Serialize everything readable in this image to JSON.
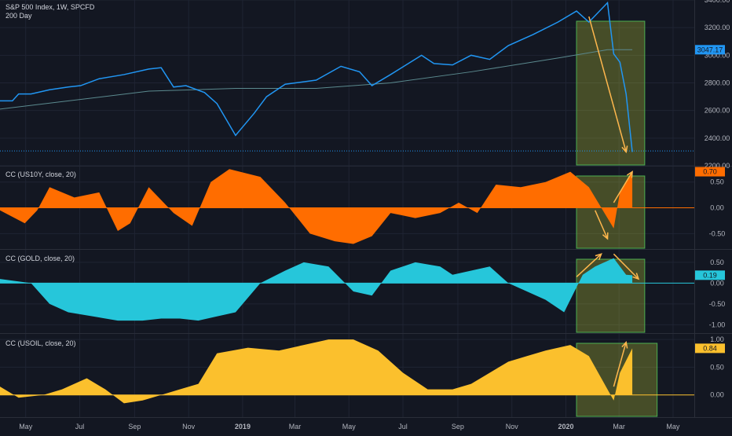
{
  "colors": {
    "background": "#131722",
    "grid": "#1f2433",
    "separator": "#2a2e39",
    "axis_text": "#b2b5be",
    "price": "#2196f3",
    "ma": "#5b8a8f",
    "us10y": "#ff6d00",
    "gold": "#26c6da",
    "usoil": "#fbc02d",
    "box_stroke": "#4caf50",
    "box_fill": "rgba(205,220,57,0.28)",
    "arrow": "#ffb74d"
  },
  "x_axis": {
    "range": [
      "2018-04-02",
      "2020-05-25"
    ],
    "ticks": [
      {
        "date": "2018-05-01",
        "label": "May",
        "bold": false
      },
      {
        "date": "2018-07-01",
        "label": "Jul",
        "bold": false
      },
      {
        "date": "2018-09-01",
        "label": "Sep",
        "bold": false
      },
      {
        "date": "2018-11-01",
        "label": "Nov",
        "bold": false
      },
      {
        "date": "2019-01-01",
        "label": "2019",
        "bold": true
      },
      {
        "date": "2019-03-01",
        "label": "Mar",
        "bold": false
      },
      {
        "date": "2019-05-01",
        "label": "May",
        "bold": false
      },
      {
        "date": "2019-07-01",
        "label": "Jul",
        "bold": false
      },
      {
        "date": "2019-09-01",
        "label": "Sep",
        "bold": false
      },
      {
        "date": "2019-11-01",
        "label": "Nov",
        "bold": false
      },
      {
        "date": "2020-01-01",
        "label": "2020",
        "bold": true
      },
      {
        "date": "2020-03-01",
        "label": "Mar",
        "bold": false
      },
      {
        "date": "2020-05-01",
        "label": "May",
        "bold": false
      }
    ]
  },
  "chart_data": [
    {
      "type": "line",
      "title": "S&P 500 Index, 1W, SPCFD",
      "ylim": [
        2200,
        3400
      ],
      "yticks": [
        2200,
        2400,
        2600,
        2800,
        3000,
        3200,
        3400
      ],
      "ytick_labels": [
        "2200.00",
        "2400.00",
        "2600.00",
        "2800.00",
        "3000.00",
        "3200.00",
        "3400.00"
      ],
      "last_value_label": "3047.17",
      "dotted_level": 2307,
      "series": [
        {
          "name": "",
          "x": [
            "2018-04-02",
            "2018-04-16",
            "2018-04-23",
            "2018-05-07",
            "2018-05-28",
            "2018-06-18",
            "2018-07-02",
            "2018-07-23",
            "2018-08-20",
            "2018-09-17",
            "2018-10-01",
            "2018-10-15",
            "2018-10-29",
            "2018-11-19",
            "2018-12-03",
            "2018-12-24",
            "2019-01-14",
            "2019-01-28",
            "2019-02-18",
            "2019-03-25",
            "2019-04-22",
            "2019-05-13",
            "2019-05-27",
            "2019-06-17",
            "2019-07-22",
            "2019-08-05",
            "2019-08-26",
            "2019-09-16",
            "2019-10-07",
            "2019-10-28",
            "2019-11-25",
            "2019-12-23",
            "2020-01-13",
            "2020-01-27",
            "2020-02-17",
            "2020-02-24",
            "2020-03-02",
            "2020-03-09",
            "2020-03-16"
          ],
          "values": [
            2670,
            2670,
            2720,
            2720,
            2750,
            2770,
            2780,
            2830,
            2860,
            2900,
            2910,
            2770,
            2780,
            2730,
            2650,
            2420,
            2580,
            2700,
            2790,
            2820,
            2920,
            2880,
            2780,
            2860,
            3000,
            2940,
            2930,
            3000,
            2970,
            3070,
            3150,
            3240,
            3320,
            3240,
            3380,
            3010,
            2950,
            2720,
            2300
          ]
        },
        {
          "name": "200 Day",
          "x": [
            "2018-04-02",
            "2018-09-17",
            "2018-12-24",
            "2019-03-25",
            "2019-06-17",
            "2019-09-16",
            "2019-12-23",
            "2020-02-17",
            "2020-03-16"
          ],
          "values": [
            2610,
            2740,
            2760,
            2760,
            2800,
            2880,
            2980,
            3040,
            3040
          ]
        }
      ]
    },
    {
      "type": "area",
      "title": "CC (US10Y, close, 20)",
      "ylim": [
        -0.8,
        0.8
      ],
      "yticks": [
        0.5,
        0,
        -0.5
      ],
      "ytick_labels": [
        "0.50",
        "0.00",
        "-0.50"
      ],
      "last_value_label": "0.70",
      "series": [
        {
          "name": "",
          "x": [
            "2018-04-02",
            "2018-04-30",
            "2018-05-14",
            "2018-05-28",
            "2018-06-25",
            "2018-07-23",
            "2018-08-13",
            "2018-08-27",
            "2018-09-17",
            "2018-10-15",
            "2018-11-05",
            "2018-11-26",
            "2018-12-17",
            "2019-01-21",
            "2019-02-18",
            "2019-03-18",
            "2019-04-15",
            "2019-05-06",
            "2019-05-27",
            "2019-06-17",
            "2019-07-15",
            "2019-08-12",
            "2019-09-02",
            "2019-09-23",
            "2019-10-14",
            "2019-11-11",
            "2019-12-09",
            "2020-01-06",
            "2020-01-27",
            "2020-02-10",
            "2020-02-24",
            "2020-03-02",
            "2020-03-16"
          ],
          "values": [
            -0.05,
            -0.3,
            -0.05,
            0.4,
            0.2,
            0.3,
            -0.45,
            -0.3,
            0.4,
            -0.1,
            -0.35,
            0.5,
            0.75,
            0.6,
            0.1,
            -0.5,
            -0.65,
            -0.7,
            -0.55,
            -0.1,
            -0.2,
            -0.1,
            0.1,
            -0.1,
            0.45,
            0.4,
            0.5,
            0.7,
            0.4,
            0.0,
            -0.4,
            0.3,
            0.7
          ]
        }
      ]
    },
    {
      "type": "area",
      "title": "CC (GOLD, close, 20)",
      "ylim": [
        -1.2,
        0.8
      ],
      "yticks": [
        0.5,
        0,
        -0.5,
        -1
      ],
      "ytick_labels": [
        "0.50",
        "0.00",
        "-0.50",
        "-1.00"
      ],
      "last_value_label": "0.19",
      "series": [
        {
          "name": "",
          "x": [
            "2018-04-02",
            "2018-05-07",
            "2018-05-28",
            "2018-06-18",
            "2018-07-16",
            "2018-08-13",
            "2018-09-10",
            "2018-10-01",
            "2018-10-22",
            "2018-11-12",
            "2018-12-03",
            "2018-12-24",
            "2019-01-21",
            "2019-02-18",
            "2019-03-11",
            "2019-04-08",
            "2019-05-06",
            "2019-05-27",
            "2019-06-17",
            "2019-07-15",
            "2019-08-12",
            "2019-08-26",
            "2019-09-16",
            "2019-10-07",
            "2019-10-28",
            "2019-11-18",
            "2019-12-09",
            "2019-12-30",
            "2020-01-20",
            "2020-02-03",
            "2020-02-24",
            "2020-03-09",
            "2020-03-16"
          ],
          "values": [
            0.1,
            0.0,
            -0.5,
            -0.7,
            -0.8,
            -0.9,
            -0.9,
            -0.85,
            -0.85,
            -0.9,
            -0.8,
            -0.7,
            0.0,
            0.3,
            0.5,
            0.4,
            -0.2,
            -0.3,
            0.3,
            0.5,
            0.4,
            0.2,
            0.3,
            0.4,
            0.0,
            -0.2,
            -0.4,
            -0.7,
            0.2,
            0.4,
            0.6,
            0.2,
            0.19
          ]
        }
      ]
    },
    {
      "type": "area",
      "title": "CC (USOIL, close, 20)",
      "ylim": [
        -0.4,
        1.1
      ],
      "yticks": [
        1,
        0.5,
        0
      ],
      "ytick_labels": [
        "1.00",
        "0.50",
        "0.00"
      ],
      "last_value_label": "0.84",
      "series": [
        {
          "name": "",
          "x": [
            "2018-04-02",
            "2018-04-23",
            "2018-05-21",
            "2018-06-11",
            "2018-07-09",
            "2018-07-30",
            "2018-08-20",
            "2018-09-10",
            "2018-10-01",
            "2018-10-22",
            "2018-11-12",
            "2018-12-03",
            "2019-01-07",
            "2019-02-11",
            "2019-03-11",
            "2019-04-08",
            "2019-05-06",
            "2019-06-03",
            "2019-07-01",
            "2019-07-29",
            "2019-08-26",
            "2019-09-16",
            "2019-10-07",
            "2019-10-28",
            "2019-11-18",
            "2019-12-09",
            "2020-01-06",
            "2020-01-27",
            "2020-02-10",
            "2020-02-24",
            "2020-03-02",
            "2020-03-16"
          ],
          "values": [
            0.15,
            -0.05,
            0.0,
            0.1,
            0.3,
            0.1,
            -0.15,
            -0.1,
            0.0,
            0.1,
            0.2,
            0.75,
            0.85,
            0.8,
            0.9,
            1.0,
            1.0,
            0.8,
            0.4,
            0.1,
            0.1,
            0.2,
            0.4,
            0.6,
            0.7,
            0.8,
            0.9,
            0.7,
            0.3,
            -0.1,
            0.4,
            0.84
          ]
        }
      ]
    }
  ],
  "annotations": {
    "rect_x": [
      "2020-01-13",
      "2020-03-30"
    ],
    "rect_x_oil": [
      "2020-01-13",
      "2020-04-13"
    ],
    "arrows": [
      {
        "pane": 0,
        "from": [
          "2020-01-27",
          3280
        ],
        "to": [
          "2020-03-09",
          2300
        ]
      },
      {
        "pane": 1,
        "from": [
          "2020-02-03",
          -0.05
        ],
        "to": [
          "2020-02-17",
          -0.6
        ]
      },
      {
        "pane": 1,
        "from": [
          "2020-02-24",
          0.1
        ],
        "to": [
          "2020-03-16",
          0.7
        ]
      },
      {
        "pane": 2,
        "from": [
          "2020-01-13",
          0.15
        ],
        "to": [
          "2020-02-10",
          0.7
        ]
      },
      {
        "pane": 2,
        "from": [
          "2020-02-24",
          0.7
        ],
        "to": [
          "2020-03-23",
          0.1
        ]
      },
      {
        "pane": 3,
        "from": [
          "2020-02-24",
          0.15
        ],
        "to": [
          "2020-03-09",
          0.95
        ]
      }
    ]
  }
}
